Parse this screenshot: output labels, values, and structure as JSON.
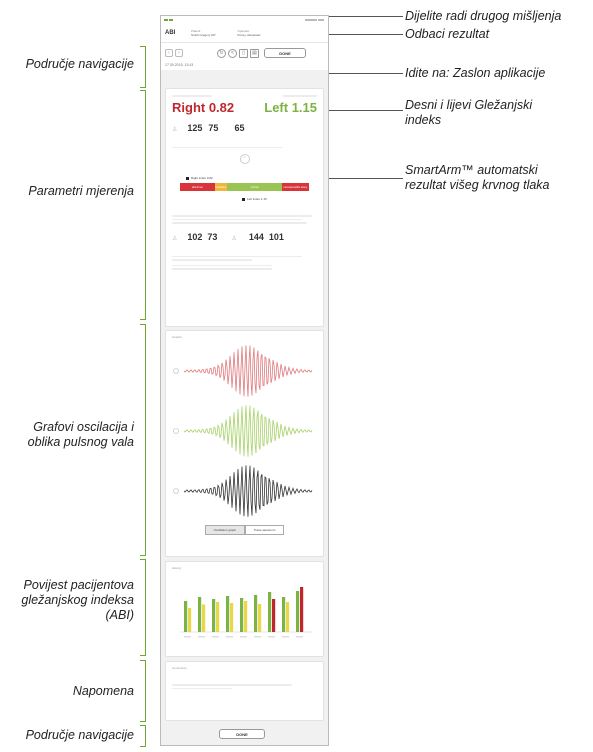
{
  "annotations": {
    "left": {
      "navigation_top": "Područje navigacije",
      "measurement_params": "Parametri mjerenja",
      "graphs": "Grafovi oscilacija i oblika pulsnog vala",
      "history": "Povijest pacijentova gležanjskog indeksa (ABI)",
      "note": "Napomena",
      "navigation_bottom": "Područje navigacije"
    },
    "right": {
      "share": "Dijelite radi drugog mišljenja",
      "discard": "Odbaci rezultat",
      "go_to": "Idite na: Zaslon aplikacije",
      "ankle_index": "Desni i lijevi Gležanjski indeks",
      "smartarm": "SmartArm™ automatski rezultat višeg krvnog tlaka"
    }
  },
  "screen": {
    "title": "ABI",
    "patient_label": "Patient",
    "patient_value": "Smith Gregory GP",
    "operator_label": "Operator",
    "operator_value": "Kuzey, Alexander",
    "done": "DONE",
    "date": "17.05.2018, 13:43",
    "right_index": "Right 0.82",
    "left_index": "Left 1.15",
    "bp_systolic": "125",
    "bp_diastolic": "75",
    "pulse": "65",
    "right_index_marker": "Right index 0.82",
    "left_index_marker": "Left index 1.15",
    "colorbar": [
      "abnormal",
      "borderline",
      "normal",
      "incompressible artery"
    ],
    "right_leg_sys": "102",
    "right_leg_dia": "73",
    "left_leg_sys": "144",
    "left_leg_dia": "101",
    "graphs_title": "Graphs",
    "tab_oscillation": "Oscillation graph",
    "tab_pulse": "Pulse waveform",
    "history_title": "History",
    "comments_title": "Comments",
    "final_done": "DONE"
  },
  "history_chart": {
    "type": "bar",
    "series_colors": [
      "#7cb342",
      "#e8d64b",
      "#c0272d"
    ],
    "groups": [
      {
        "a": 0.62,
        "b": 0.48
      },
      {
        "a": 0.7,
        "b": 0.55
      },
      {
        "a": 0.66,
        "b": 0.6
      },
      {
        "a": 0.72,
        "b": 0.58
      },
      {
        "a": 0.68,
        "b": 0.62
      },
      {
        "a": 0.74,
        "b": 0.56
      },
      {
        "a": 0.8,
        "b": 0.66
      },
      {
        "a": 0.7,
        "b": 0.6
      },
      {
        "a": 0.82,
        "b": 0.9
      }
    ]
  }
}
